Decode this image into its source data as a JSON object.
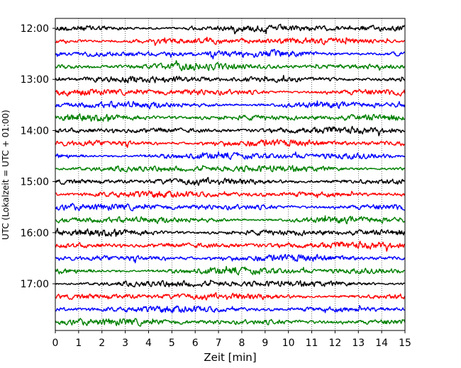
{
  "chart_data": {
    "type": "line",
    "title": "",
    "xlabel": "Zeit  [min]",
    "ylabel": "UTC (Lokalzeit = UTC + 01:00)",
    "xlim": [
      0,
      15
    ],
    "x_ticks": [
      0,
      1,
      2,
      3,
      4,
      5,
      6,
      7,
      8,
      9,
      10,
      11,
      12,
      13,
      14,
      15
    ],
    "grid": "vertical dotted",
    "trace_interval_minutes": 15,
    "trace_colors": [
      "#000000",
      "#ff0000",
      "#0000ff",
      "#008000"
    ],
    "y_tick_labels": [
      "12:00",
      "13:00",
      "14:00",
      "15:00",
      "16:00",
      "17:00"
    ],
    "traces": [
      {
        "start": "12:00"
      },
      {
        "start": "12:15"
      },
      {
        "start": "12:30"
      },
      {
        "start": "12:45"
      },
      {
        "start": "13:00"
      },
      {
        "start": "13:15"
      },
      {
        "start": "13:30"
      },
      {
        "start": "13:45"
      },
      {
        "start": "14:00"
      },
      {
        "start": "14:15"
      },
      {
        "start": "14:30"
      },
      {
        "start": "14:45"
      },
      {
        "start": "15:00"
      },
      {
        "start": "15:15"
      },
      {
        "start": "15:30"
      },
      {
        "start": "15:45"
      },
      {
        "start": "16:00"
      },
      {
        "start": "16:15"
      },
      {
        "start": "16:30"
      },
      {
        "start": "16:45"
      },
      {
        "start": "17:00"
      },
      {
        "start": "17:15"
      },
      {
        "start": "17:30"
      },
      {
        "start": "17:45"
      }
    ]
  }
}
